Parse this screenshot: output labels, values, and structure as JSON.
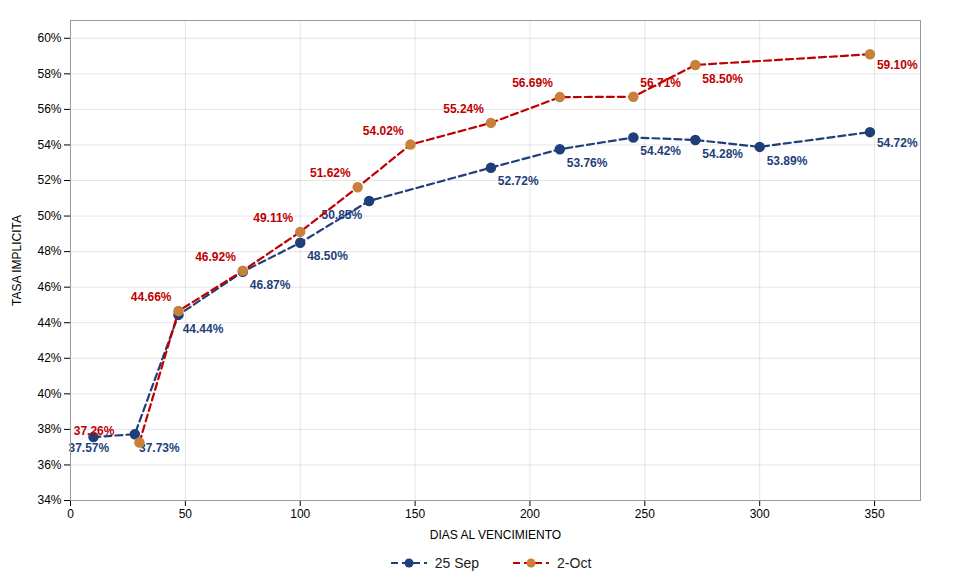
{
  "chart_data": {
    "type": "line",
    "xlabel": "DIAS AL VENCIMIENTO",
    "ylabel": "TASA IMPLICITA",
    "xlim": [
      0,
      370
    ],
    "ylim": [
      34,
      61
    ],
    "xticks": [
      0,
      50,
      100,
      150,
      200,
      250,
      300,
      350
    ],
    "yticks": [
      {
        "value": 34,
        "label": "34%"
      },
      {
        "value": 36,
        "label": "36%"
      },
      {
        "value": 38,
        "label": "38%"
      },
      {
        "value": 40,
        "label": "40%"
      },
      {
        "value": 42,
        "label": "42%"
      },
      {
        "value": 44,
        "label": "44%"
      },
      {
        "value": 46,
        "label": "46%"
      },
      {
        "value": 48,
        "label": "48%"
      },
      {
        "value": 50,
        "label": "50%"
      },
      {
        "value": 52,
        "label": "52%"
      },
      {
        "value": 54,
        "label": "54%"
      },
      {
        "value": 56,
        "label": "56%"
      },
      {
        "value": 58,
        "label": "58%"
      },
      {
        "value": 60,
        "label": "60%"
      }
    ],
    "grid": true,
    "legend": "bottom",
    "data_labels": true,
    "series": [
      {
        "name": "25 Sep",
        "color": "#1F3F7A",
        "marker": "circle",
        "line_style": "dashed",
        "x": [
          10,
          28,
          47,
          75,
          100,
          130,
          183,
          213,
          245,
          272,
          300,
          348
        ],
        "values": [
          37.57,
          37.73,
          44.44,
          46.87,
          48.5,
          50.85,
          52.72,
          53.76,
          54.42,
          54.28,
          53.89,
          54.72
        ],
        "value_labels": [
          "37.57%",
          "37.73%",
          "44.44%",
          "46.87%",
          "48.50%",
          "50.85%",
          "52.72%",
          "53.76%",
          "54.42%",
          "54.28%",
          "53.89%",
          "54.72%"
        ]
      },
      {
        "name": "2-Oct",
        "color": "#C00000",
        "marker_color": "#C8803A",
        "marker": "circle",
        "line_style": "dashed",
        "x": [
          30,
          47,
          75,
          100,
          125,
          148,
          183,
          213,
          245,
          272,
          348
        ],
        "values": [
          37.26,
          44.66,
          46.92,
          49.11,
          51.62,
          54.02,
          55.24,
          56.69,
          56.71,
          58.5,
          59.1
        ],
        "value_labels": [
          "37.26%",
          "44.66%",
          "46.92%",
          "49.11%",
          "51.62%",
          "54.02%",
          "55.24%",
          "56.69%",
          "56.71%",
          "58.50%",
          "59.10%"
        ]
      }
    ]
  }
}
